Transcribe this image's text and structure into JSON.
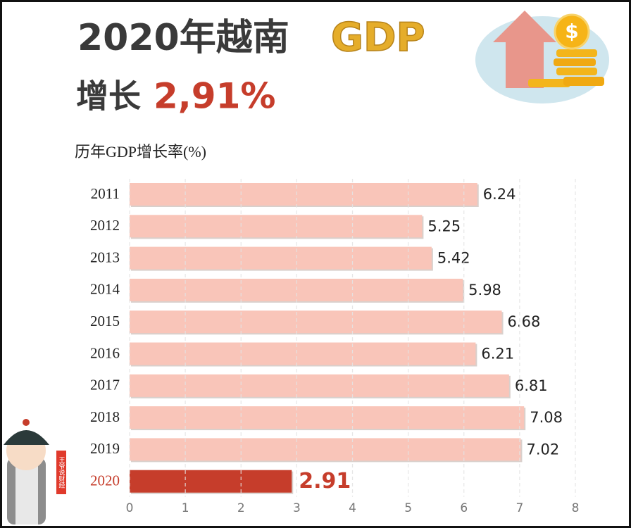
{
  "headline": {
    "title": "2020年越南",
    "title_highlight": "GDP",
    "subtitle": "增长",
    "subtitle_highlight": "2,91%"
  },
  "stamp": "王爷说财经",
  "chart_data": {
    "type": "bar",
    "orientation": "horizontal",
    "title": "历年GDP增长率(%)",
    "categories": [
      "2011",
      "2012",
      "2013",
      "2014",
      "2015",
      "2016",
      "2017",
      "2018",
      "2019",
      "2020"
    ],
    "values": [
      6.24,
      5.25,
      5.42,
      5.98,
      6.68,
      6.21,
      6.81,
      7.08,
      7.02,
      2.91
    ],
    "colors": [
      "#f9c5b9",
      "#f9c5b9",
      "#f9c5b9",
      "#f9c5b9",
      "#f9c5b9",
      "#f9c5b9",
      "#f9c5b9",
      "#f9c5b9",
      "#f9c5b9",
      "#c63d2b"
    ],
    "xlim": [
      0,
      8
    ],
    "xticks": [
      0,
      1,
      2,
      3,
      4,
      5,
      6,
      7,
      8
    ],
    "grid": true
  }
}
